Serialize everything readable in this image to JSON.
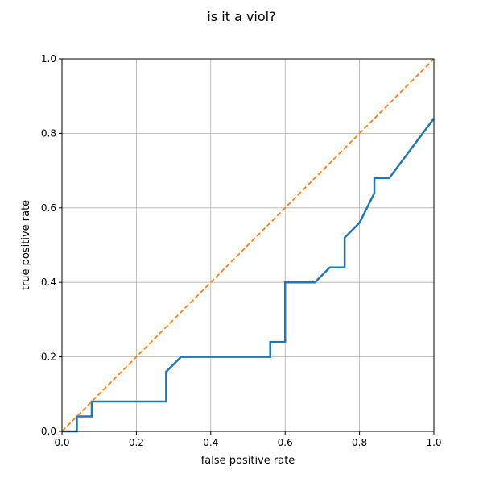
{
  "chart_data": {
    "type": "line",
    "title": "is it a viol?",
    "xlabel": "false positive rate",
    "ylabel": "true positive rate",
    "xlim": [
      0,
      1
    ],
    "ylim": [
      0,
      1
    ],
    "xticks": [
      "0.0",
      "0.2",
      "0.4",
      "0.6",
      "0.8",
      "1.0"
    ],
    "yticks": [
      "0.0",
      "0.2",
      "0.4",
      "0.6",
      "0.8",
      "1.0"
    ],
    "grid": true,
    "series": [
      {
        "color": "#1f77b4",
        "style": "solid",
        "x": [
          0.0,
          0.04,
          0.04,
          0.08,
          0.08,
          0.28,
          0.28,
          0.32,
          0.56,
          0.56,
          0.6,
          0.6,
          0.68,
          0.72,
          0.76,
          0.76,
          0.8,
          0.84,
          0.84,
          0.88,
          1.0
        ],
        "y": [
          0.0,
          0.0,
          0.04,
          0.04,
          0.08,
          0.08,
          0.16,
          0.2,
          0.2,
          0.24,
          0.24,
          0.4,
          0.4,
          0.44,
          0.44,
          0.52,
          0.56,
          0.64,
          0.68,
          0.68,
          0.84
        ]
      },
      {
        "color": "#ff7f0e",
        "style": "dashed",
        "x": [
          0,
          1
        ],
        "y": [
          0,
          1
        ]
      }
    ]
  }
}
